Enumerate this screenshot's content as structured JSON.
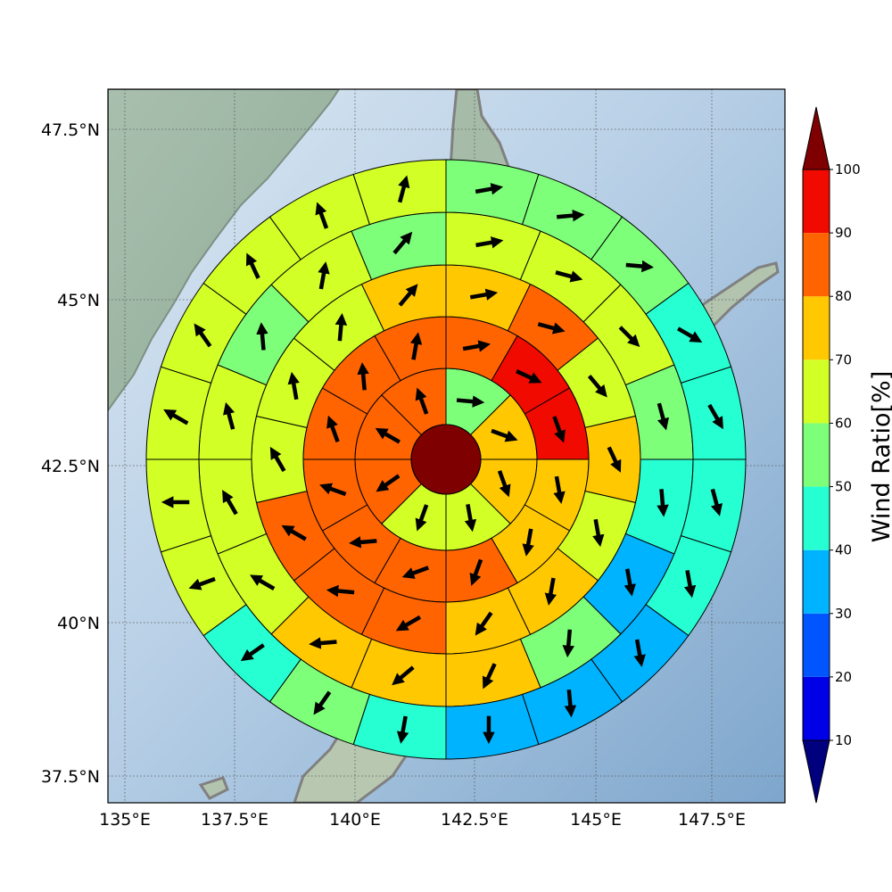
{
  "map": {
    "lon_ticks": [
      "135°E",
      "137.5°E",
      "140°E",
      "142.5°E",
      "145°E",
      "147.5°E"
    ],
    "lat_ticks": [
      "37.5°N",
      "40°N",
      "42.5°N",
      "45°N",
      "47.5°N"
    ],
    "lon_range": [
      135,
      149
    ],
    "lat_range": [
      37.1,
      48.1
    ],
    "center_color": "#7f0000",
    "land_color": "#9fb8a4",
    "ocean_color": "#8fb3d5"
  },
  "colorbar": {
    "title": "Wind Ratio[%]",
    "ticks": [
      "10",
      "20",
      "30",
      "40",
      "50",
      "60",
      "70",
      "80",
      "90",
      "100"
    ],
    "colors": [
      "#0000e6",
      "#0055ff",
      "#00b3ff",
      "#26ffd2",
      "#7dff7a",
      "#d2ff26",
      "#ffc800",
      "#ff6400",
      "#f00a00"
    ],
    "under_color": "#00007f",
    "over_color": "#7f0000"
  },
  "rings": [
    {
      "colors": [
        "#7dff7a",
        "#ffc800",
        "#ffc800",
        "#d2ff26",
        "#d2ff26",
        "#ff6400",
        "#ff6400",
        "#ff6400"
      ],
      "arrows": [
        95,
        110,
        160,
        170,
        200,
        235,
        300,
        340
      ]
    },
    {
      "colors": [
        "#ff6400",
        "#f00a00",
        "#f00a00",
        "#ffc800",
        "#ffc800",
        "#ff6400",
        "#ff6400",
        "#ff6400",
        "#ff6400",
        "#ff6400",
        "#ff6400",
        "#ff6400"
      ],
      "arrows": [
        80,
        115,
        160,
        170,
        190,
        200,
        250,
        265,
        290,
        340,
        355,
        10
      ]
    },
    {
      "colors": [
        "#ffc800",
        "#ff6400",
        "#d2ff26",
        "#ffc800",
        "#d2ff26",
        "#ffc800",
        "#ffc800",
        "#ff6400",
        "#ff6400",
        "#ff6400",
        "#d2ff26",
        "#d2ff26",
        "#d2ff26",
        "#ffc800"
      ],
      "arrows": [
        80,
        105,
        140,
        155,
        170,
        190,
        215,
        240,
        275,
        300,
        330,
        350,
        5,
        40
      ]
    },
    {
      "colors": [
        "#d2ff26",
        "#d2ff26",
        "#d2ff26",
        "#7dff7a",
        "#26ffd2",
        "#00b3ff",
        "#7dff7a",
        "#ffc800",
        "#ffc800",
        "#ffc800",
        "#d2ff26",
        "#d2ff26",
        "#d2ff26",
        "#7dff7a",
        "#d2ff26",
        "#7dff7a"
      ],
      "arrows": [
        80,
        105,
        135,
        165,
        175,
        170,
        185,
        205,
        230,
        265,
        300,
        330,
        345,
        355,
        10,
        40
      ]
    },
    {
      "colors": [
        "#7dff7a",
        "#7dff7a",
        "#7dff7a",
        "#26ffd2",
        "#26ffd2",
        "#26ffd2",
        "#26ffd2",
        "#00b3ff",
        "#00b3ff",
        "#00b3ff",
        "#26ffd2",
        "#7dff7a",
        "#26ffd2",
        "#d2ff26",
        "#d2ff26",
        "#d2ff26",
        "#d2ff26",
        "#d2ff26",
        "#d2ff26",
        "#d2ff26"
      ],
      "arrows": [
        80,
        85,
        95,
        120,
        150,
        165,
        170,
        170,
        175,
        180,
        190,
        215,
        235,
        250,
        270,
        300,
        325,
        335,
        340,
        15
      ]
    }
  ]
}
